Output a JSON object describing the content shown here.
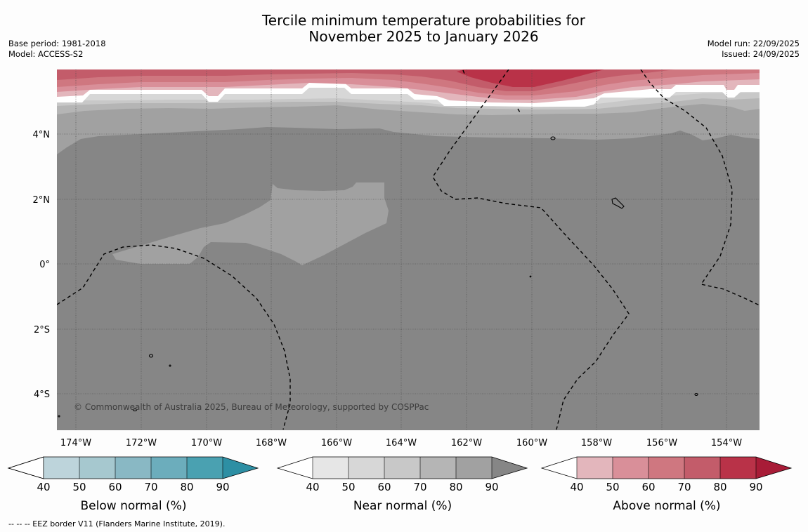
{
  "title": {
    "line1": "Tercile minimum temperature probabilities for",
    "line2": "November 2025 to January 2026"
  },
  "meta_left": {
    "base_period": "Base period: 1981-2018",
    "model": "Model: ACCESS-S2"
  },
  "meta_right": {
    "model_run": "Model run: 22/09/2025",
    "issued": "Issued: 24/09/2025"
  },
  "map": {
    "lat_labels": [
      "4°N",
      "2°N",
      "0°",
      "2°S",
      "4°S"
    ],
    "lon_labels": [
      "174°W",
      "172°W",
      "170°W",
      "168°W",
      "166°W",
      "164°W",
      "162°W",
      "160°W",
      "158°W",
      "156°W",
      "154°W"
    ],
    "copyright": "© Commonwealth of Australia 2025, Bureau of Meteorology, supported by COSPPac"
  },
  "legends": [
    {
      "label": "Below normal (%)",
      "ticks": [
        "40",
        "50",
        "60",
        "70",
        "80",
        "90"
      ],
      "colors": [
        "#ffffff",
        "#bdd4db",
        "#a6c8cf",
        "#89b8c4",
        "#6cadbc",
        "#4aa1b1",
        "#2d8fa4"
      ]
    },
    {
      "label": "Near normal (%)",
      "ticks": [
        "40",
        "50",
        "60",
        "70",
        "80",
        "90"
      ],
      "colors": [
        "#ffffff",
        "#e6e6e6",
        "#d7d7d7",
        "#c8c8c8",
        "#b5b5b5",
        "#a1a1a1",
        "#868686"
      ]
    },
    {
      "label": "Above normal (%)",
      "ticks": [
        "40",
        "50",
        "60",
        "70",
        "80",
        "90"
      ],
      "colors": [
        "#ffffff",
        "#e3b6bc",
        "#d98f99",
        "#cf7780",
        "#c35c6a",
        "#b93248",
        "#a81c37"
      ]
    }
  ],
  "footnote": "--  --  -- EEZ border V11 (Flanders Marine Institute, 2019)."
}
